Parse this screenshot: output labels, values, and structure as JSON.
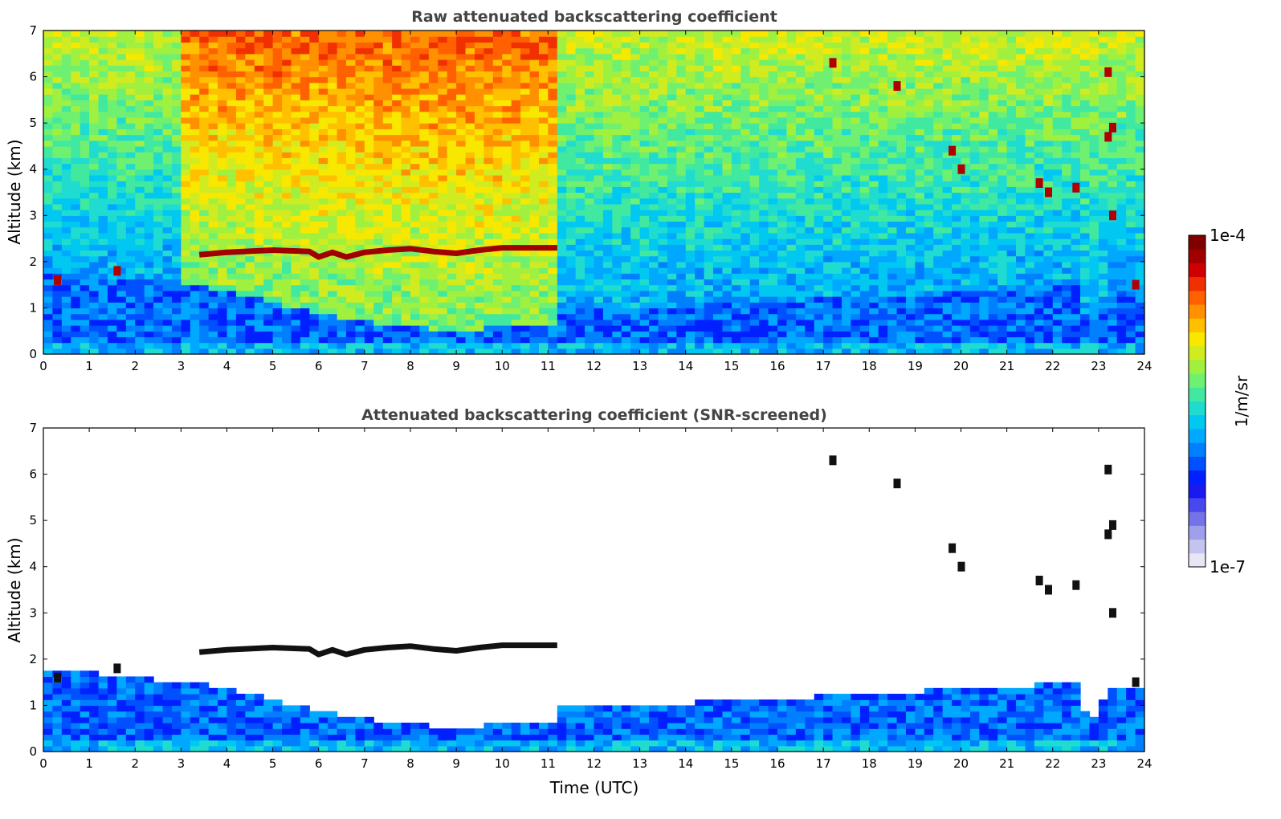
{
  "chart_data": [
    {
      "type": "heatmap",
      "title": "Raw attenuated backscattering coefficient",
      "xlabel": "",
      "ylabel": "Altitude (km)",
      "xlim": [
        0,
        24
      ],
      "ylim": [
        0,
        7
      ],
      "x_ticks": [
        "0",
        "1",
        "2",
        "3",
        "4",
        "5",
        "6",
        "7",
        "8",
        "9",
        "10",
        "11",
        "12",
        "13",
        "14",
        "15",
        "16",
        "17",
        "18",
        "19",
        "20",
        "21",
        "22",
        "23",
        "24"
      ],
      "y_ticks": [
        "0",
        "1",
        "2",
        "3",
        "4",
        "5",
        "6",
        "7"
      ],
      "screened": false,
      "noisy_region": {
        "x_start": 3,
        "x_end": 11.2
      },
      "cloud_layer": [
        [
          3.4,
          2.15
        ],
        [
          4,
          2.2
        ],
        [
          5,
          2.25
        ],
        [
          5.8,
          2.22
        ],
        [
          6,
          2.1
        ],
        [
          6.3,
          2.2
        ],
        [
          6.6,
          2.1
        ],
        [
          7,
          2.2
        ],
        [
          7.5,
          2.25
        ],
        [
          8,
          2.28
        ],
        [
          8.5,
          2.22
        ],
        [
          9,
          2.18
        ],
        [
          9.5,
          2.25
        ],
        [
          10,
          2.3
        ],
        [
          10.5,
          2.3
        ],
        [
          11.2,
          2.3
        ]
      ],
      "cloud_patches": [
        [
          19.8,
          4.4
        ],
        [
          20.0,
          4.0
        ],
        [
          21.7,
          3.7
        ],
        [
          21.9,
          3.5
        ],
        [
          22.5,
          3.6
        ],
        [
          23.3,
          4.9
        ],
        [
          23.2,
          4.7
        ],
        [
          18.6,
          5.8
        ],
        [
          17.2,
          6.3
        ],
        [
          23.2,
          6.1
        ],
        [
          23.3,
          3.0
        ],
        [
          1.6,
          1.8
        ],
        [
          0.3,
          1.6
        ],
        [
          23.8,
          1.5
        ]
      ],
      "boundary_layer_top": [
        [
          0,
          1.8
        ],
        [
          1,
          1.7
        ],
        [
          2,
          1.6
        ],
        [
          3,
          1.5
        ],
        [
          4,
          1.4
        ],
        [
          5,
          1.1
        ],
        [
          6,
          0.9
        ],
        [
          7,
          0.7
        ],
        [
          8,
          0.6
        ],
        [
          9,
          0.5
        ],
        [
          10,
          0.6
        ],
        [
          11.2,
          0.6
        ],
        [
          11.3,
          1.0
        ],
        [
          13,
          1.0
        ],
        [
          15,
          1.1
        ],
        [
          17,
          1.2
        ],
        [
          19,
          1.3
        ],
        [
          21,
          1.4
        ],
        [
          22.5,
          1.5
        ],
        [
          22.8,
          0.6
        ],
        [
          23.2,
          1.3
        ],
        [
          24,
          1.4
        ]
      ]
    },
    {
      "type": "heatmap",
      "title": "Attenuated backscattering coefficient (SNR-screened)",
      "xlabel": "Time (UTC)",
      "ylabel": "Altitude (km)",
      "xlim": [
        0,
        24
      ],
      "ylim": [
        0,
        7
      ],
      "x_ticks": [
        "0",
        "1",
        "2",
        "3",
        "4",
        "5",
        "6",
        "7",
        "8",
        "9",
        "10",
        "11",
        "12",
        "13",
        "14",
        "15",
        "16",
        "17",
        "18",
        "19",
        "20",
        "21",
        "22",
        "23",
        "24"
      ],
      "y_ticks": [
        "0",
        "1",
        "2",
        "3",
        "4",
        "5",
        "6",
        "7"
      ],
      "screened": true
    }
  ],
  "colorbar": {
    "label": "1/m/sr",
    "max_label": "1e-4",
    "min_label": "1e-7",
    "colors": [
      "#e6e6f5",
      "#c4c4ee",
      "#a0a0ea",
      "#7474ea",
      "#4848ee",
      "#1a1af0",
      "#0020ff",
      "#0050ff",
      "#0080ff",
      "#00a8ff",
      "#00c8f0",
      "#20dcd0",
      "#40e8a0",
      "#70f070",
      "#a0f040",
      "#d0ec20",
      "#f8e800",
      "#ffc000",
      "#ff9000",
      "#ff6000",
      "#f03000",
      "#d00000",
      "#a00000",
      "#800000"
    ],
    "scale": "log"
  }
}
